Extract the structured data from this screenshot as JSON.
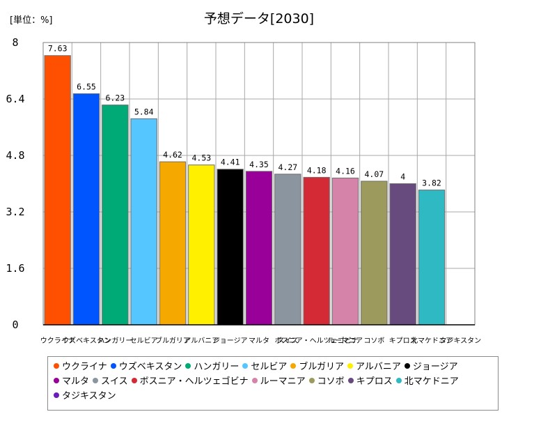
{
  "unit_label": "[単位：%]",
  "chart_data": {
    "type": "bar",
    "title": "予想データ[2030]",
    "xlabel": "",
    "ylabel": "",
    "ylim": [
      0,
      8
    ],
    "yticks": [
      "0",
      "1.6",
      "3.2",
      "4.8",
      "6.4",
      "8"
    ],
    "grid": true,
    "legend_position": "bottom",
    "categories": [
      "ウクライナ",
      "ウズベキスタン",
      "ハンガリー",
      "セルビア",
      "ブルガリア",
      "アルバニア",
      "ジョージア",
      "マルタ",
      "スイス",
      "ボスニア・ヘルツェゴビナ",
      "ルーマニア",
      "コソボ",
      "キプロス",
      "北マケドニア",
      "タジキスタン"
    ],
    "values": [
      7.63,
      6.55,
      6.23,
      5.84,
      4.62,
      4.53,
      4.41,
      4.35,
      4.27,
      4.18,
      4.16,
      4.07,
      4,
      3.82,
      null
    ],
    "value_labels": [
      "7.63",
      "6.55",
      "6.23",
      "5.84",
      "4.62",
      "4.53",
      "4.41",
      "4.35",
      "4.27",
      "4.18",
      "4.16",
      "4.07",
      "4",
      "3.82",
      ""
    ],
    "colors": [
      "#ff4f00",
      "#0055ff",
      "#00aa77",
      "#55c6ff",
      "#f5a800",
      "#fff000",
      "#000000",
      "#990099",
      "#8a959f",
      "#d42a35",
      "#d583a8",
      "#9c9b5d",
      "#674b7e",
      "#2eb9c3",
      "#6a1eb9"
    ]
  }
}
